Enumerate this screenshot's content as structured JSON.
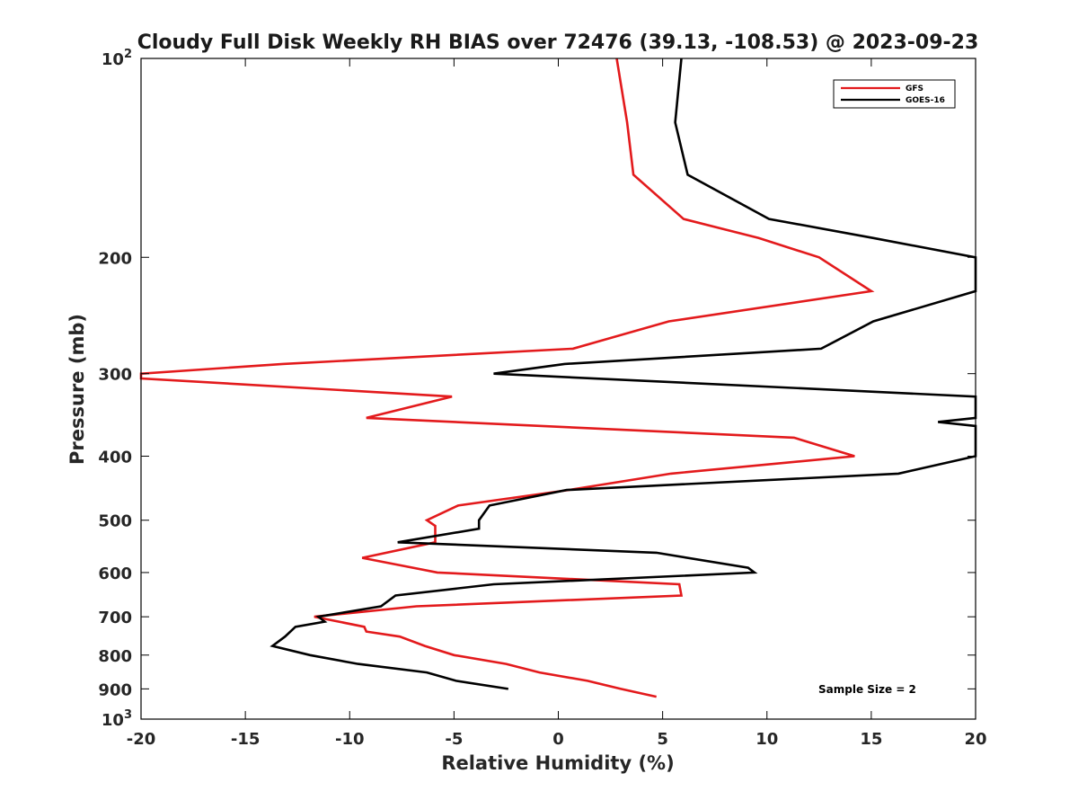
{
  "chart_data": {
    "type": "line",
    "title": "Cloudy Full Disk Weekly RH BIAS over 72476 (39.13, -108.53) @ 2023-09-23",
    "xlabel": "Relative Humidity (%)",
    "ylabel": "Pressure (mb)",
    "xlim": [
      -20,
      20
    ],
    "ylim": [
      100,
      1000
    ],
    "y_scale": "log",
    "y_reversed": true,
    "x_ticks": [
      "-20",
      "-15",
      "-10",
      "-5",
      "0",
      "5",
      "10",
      "15",
      "20"
    ],
    "y_ticks": [
      {
        "value": 100,
        "label": "10",
        "sup": "2"
      },
      {
        "value": 200,
        "label": "200"
      },
      {
        "value": 300,
        "label": "300"
      },
      {
        "value": 400,
        "label": "400"
      },
      {
        "value": 500,
        "label": "500"
      },
      {
        "value": 600,
        "label": "600"
      },
      {
        "value": 700,
        "label": "700"
      },
      {
        "value": 800,
        "label": "800"
      },
      {
        "value": 900,
        "label": "900"
      },
      {
        "value": 1000,
        "label": "10",
        "sup": "3"
      }
    ],
    "grid": false,
    "legend_position": "top-right",
    "annotation": "Sample Size = 2",
    "series": [
      {
        "name": "GFS",
        "color": "#e31a1c",
        "points": [
          [
            2.8,
            100
          ],
          [
            3.3,
            125
          ],
          [
            3.6,
            150
          ],
          [
            6.0,
            175
          ],
          [
            9.6,
            187
          ],
          [
            12.5,
            200
          ],
          [
            15.0,
            225
          ],
          [
            5.3,
            250
          ],
          [
            0.7,
            275
          ],
          [
            -13.2,
            290
          ],
          [
            -20.0,
            300
          ],
          [
            -20.0,
            305
          ],
          [
            -5.1,
            325
          ],
          [
            -9.2,
            350
          ],
          [
            11.3,
            375
          ],
          [
            14.2,
            400
          ],
          [
            5.4,
            425
          ],
          [
            0.5,
            450
          ],
          [
            -4.8,
            475
          ],
          [
            -6.3,
            500
          ],
          [
            -5.9,
            510
          ],
          [
            -5.9,
            540
          ],
          [
            -9.4,
            570
          ],
          [
            -5.8,
            600
          ],
          [
            5.8,
            625
          ],
          [
            5.9,
            650
          ],
          [
            -6.8,
            675
          ],
          [
            -11.7,
            700
          ],
          [
            -9.3,
            725
          ],
          [
            -9.2,
            737
          ],
          [
            -7.6,
            750
          ],
          [
            -6.4,
            775
          ],
          [
            -5.0,
            800
          ],
          [
            -2.5,
            825
          ],
          [
            -0.9,
            850
          ],
          [
            1.4,
            875
          ],
          [
            3.0,
            900
          ],
          [
            4.7,
            925
          ]
        ]
      },
      {
        "name": "GOES-16",
        "color": "#000000",
        "points": [
          [
            5.9,
            100
          ],
          [
            5.6,
            125
          ],
          [
            6.2,
            150
          ],
          [
            10.1,
            175
          ],
          [
            15.1,
            187
          ],
          [
            20.0,
            200
          ],
          [
            20.0,
            225
          ],
          [
            15.1,
            250
          ],
          [
            12.6,
            275
          ],
          [
            0.3,
            290
          ],
          [
            -3.1,
            300
          ],
          [
            20.0,
            325
          ],
          [
            20.0,
            350
          ],
          [
            18.2,
            355
          ],
          [
            20.0,
            360
          ],
          [
            20.0,
            400
          ],
          [
            16.3,
            425
          ],
          [
            0.4,
            450
          ],
          [
            -3.3,
            475
          ],
          [
            -3.8,
            500
          ],
          [
            -3.8,
            515
          ],
          [
            -7.7,
            540
          ],
          [
            4.7,
            560
          ],
          [
            9.1,
            590
          ],
          [
            9.4,
            600
          ],
          [
            -3.1,
            625
          ],
          [
            -7.8,
            650
          ],
          [
            -8.5,
            675
          ],
          [
            -11.5,
            700
          ],
          [
            -11.2,
            712
          ],
          [
            -12.6,
            725
          ],
          [
            -13.1,
            750
          ],
          [
            -13.7,
            775
          ],
          [
            -11.9,
            800
          ],
          [
            -9.6,
            825
          ],
          [
            -6.3,
            850
          ],
          [
            -4.9,
            875
          ],
          [
            -2.4,
            900
          ]
        ]
      }
    ]
  }
}
